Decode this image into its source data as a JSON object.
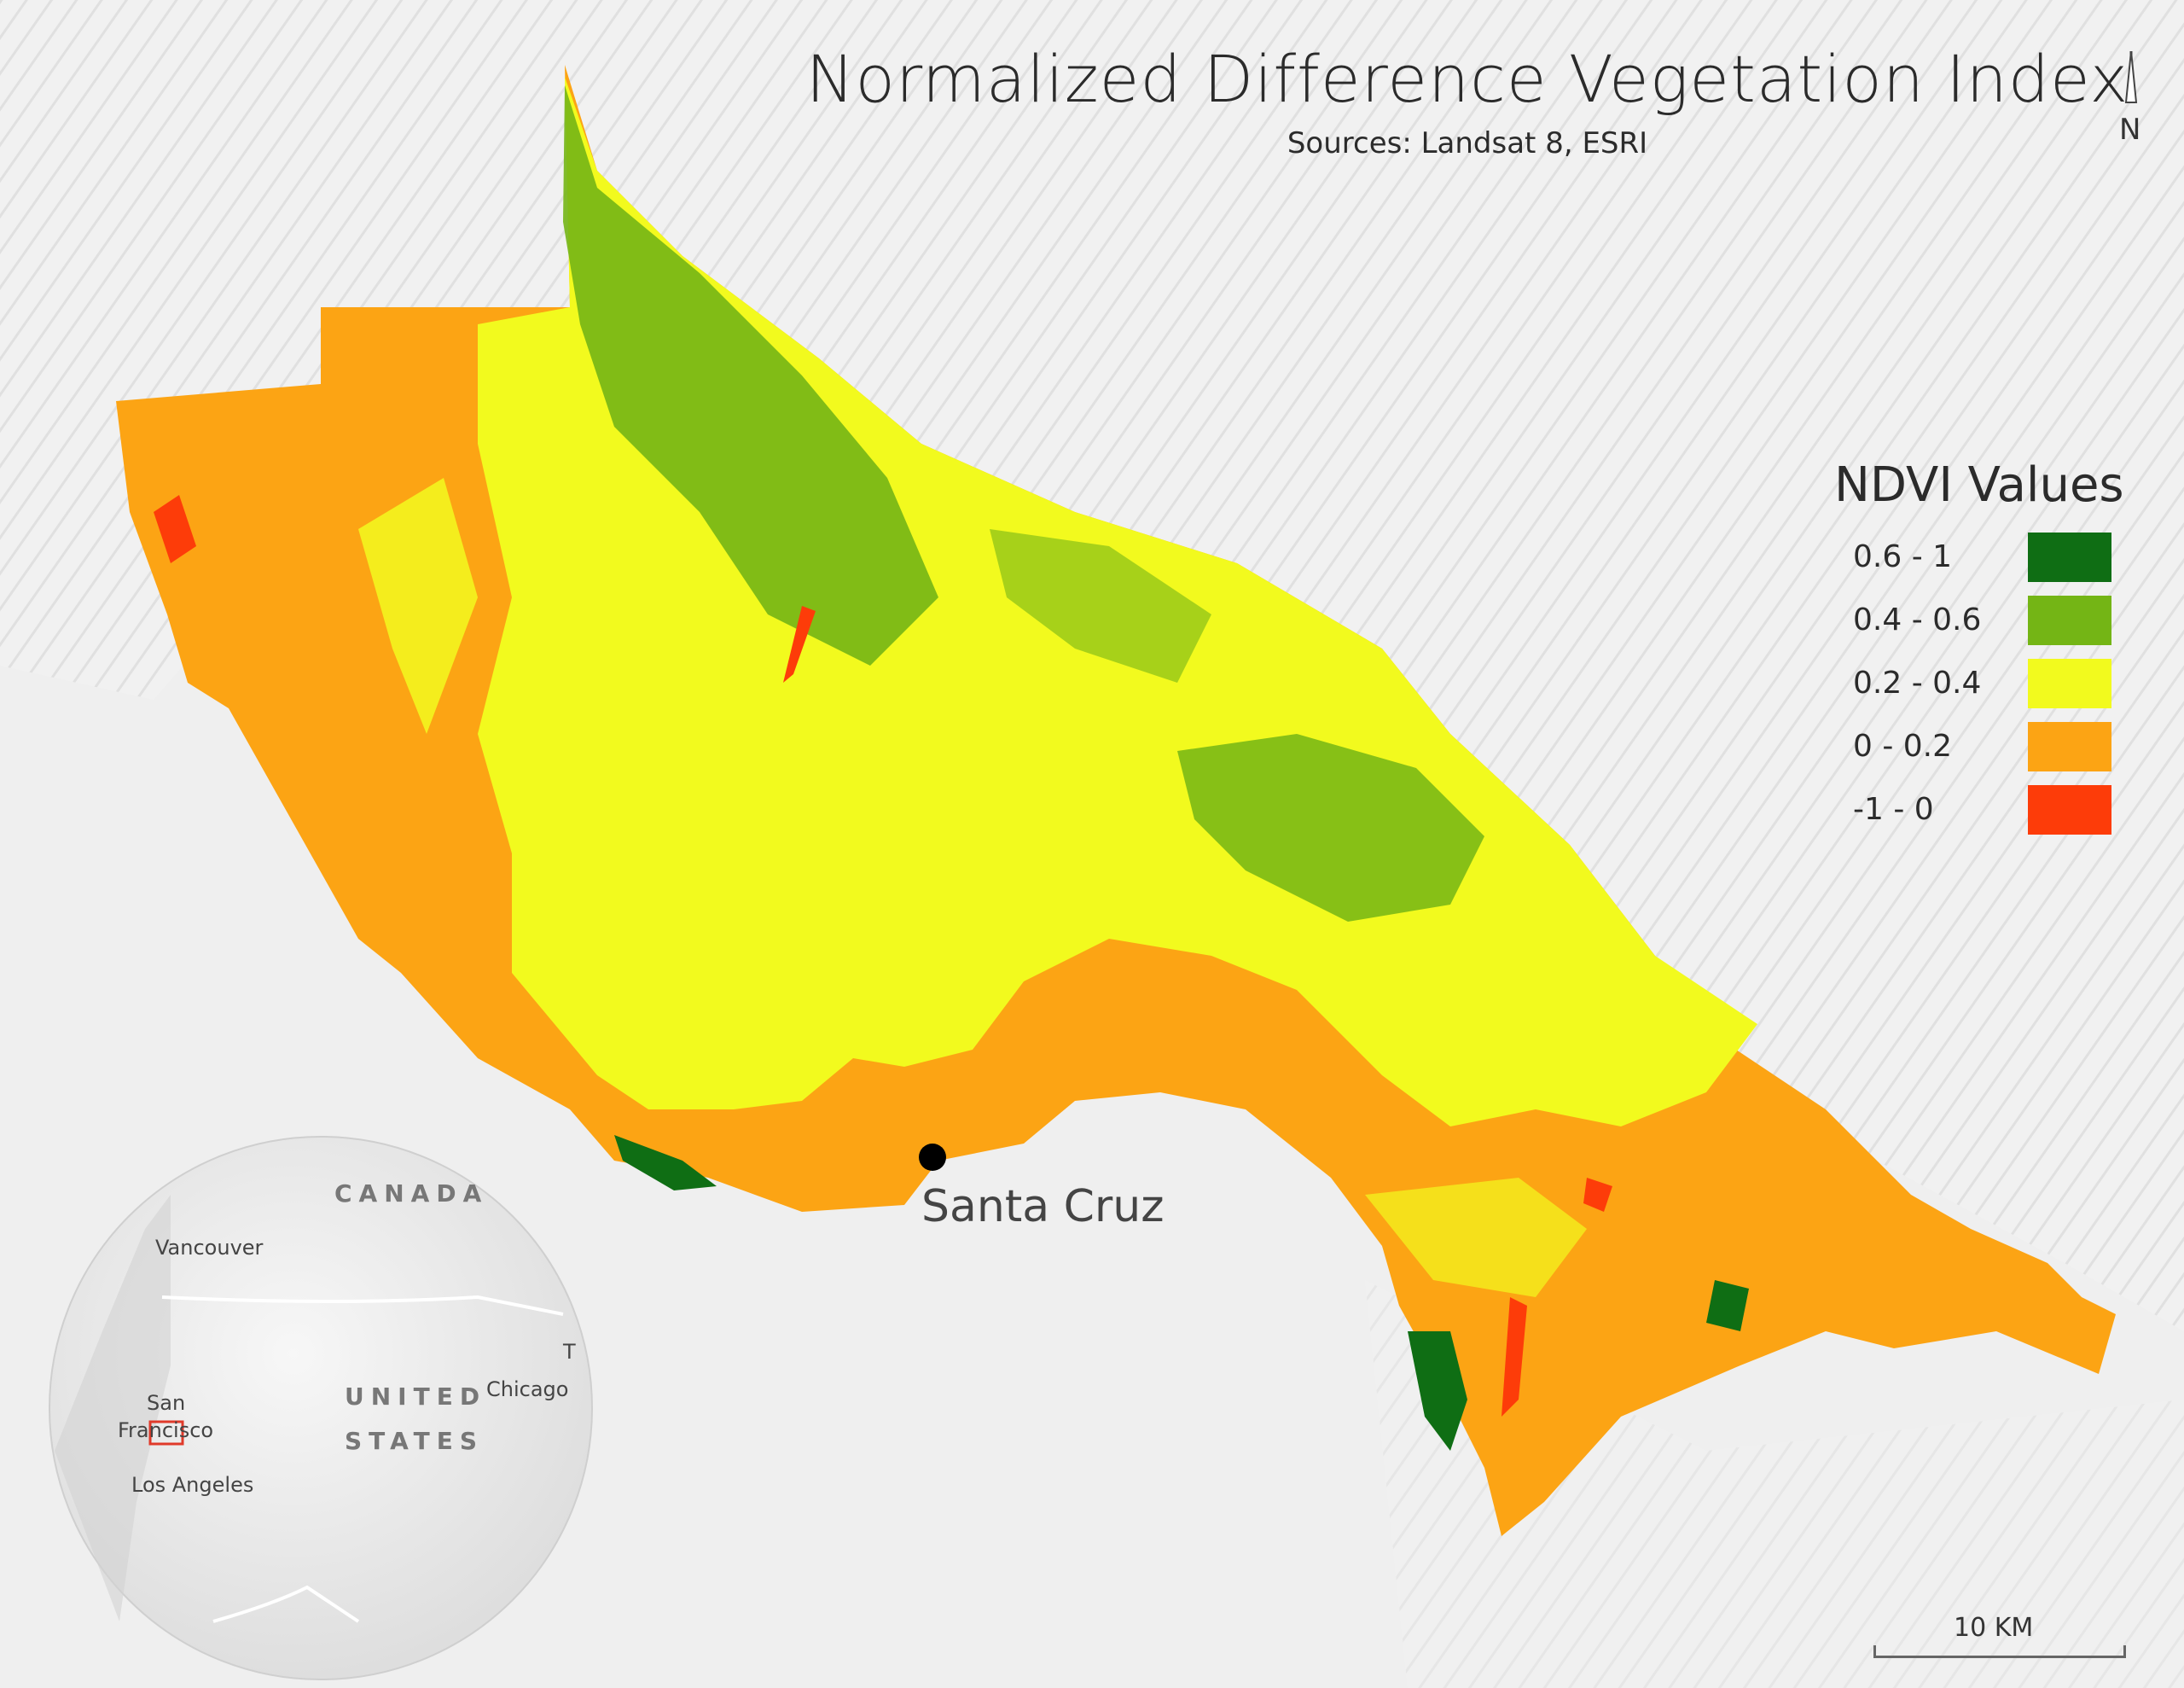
{
  "map": {
    "title": "Normalized Difference Vegetation Index",
    "subtitle": "Sources: Landsat 8, ESRI",
    "north_label": "N",
    "north_icon": "north-arrow-icon",
    "city": {
      "name": "Santa Cruz"
    },
    "scale_label": "10 KM",
    "colors": {
      "background": "#efefef",
      "terrain": "#d9d9d9",
      "ndvi_high": "#0f6e14",
      "ndvi_mid_high": "#74b515",
      "ndvi_mid": "#f2fa1e",
      "ndvi_low": "#fca414",
      "ndvi_negative": "#fd3c09"
    }
  },
  "legend": {
    "title": "NDVI Values",
    "items": [
      {
        "label": "0.6 - 1",
        "color": "#0f6e14"
      },
      {
        "label": "0.4 - 0.6",
        "color": "#74b515"
      },
      {
        "label": "0.2 - 0.4",
        "color": "#f2fa1e"
      },
      {
        "label": "0 - 0.2",
        "color": "#fca414"
      },
      {
        "label": "-1 - 0",
        "color": "#fd3c09"
      }
    ]
  },
  "inset": {
    "country_canada": "CANADA",
    "country_us_line1": "UNITED",
    "country_us_line2": "STATES",
    "city_vancouver": "Vancouver",
    "city_san": "San",
    "city_francisco": "Francisco",
    "city_los_angeles": "Los Angeles",
    "city_chicago": "Chicago",
    "city_t": "T"
  }
}
